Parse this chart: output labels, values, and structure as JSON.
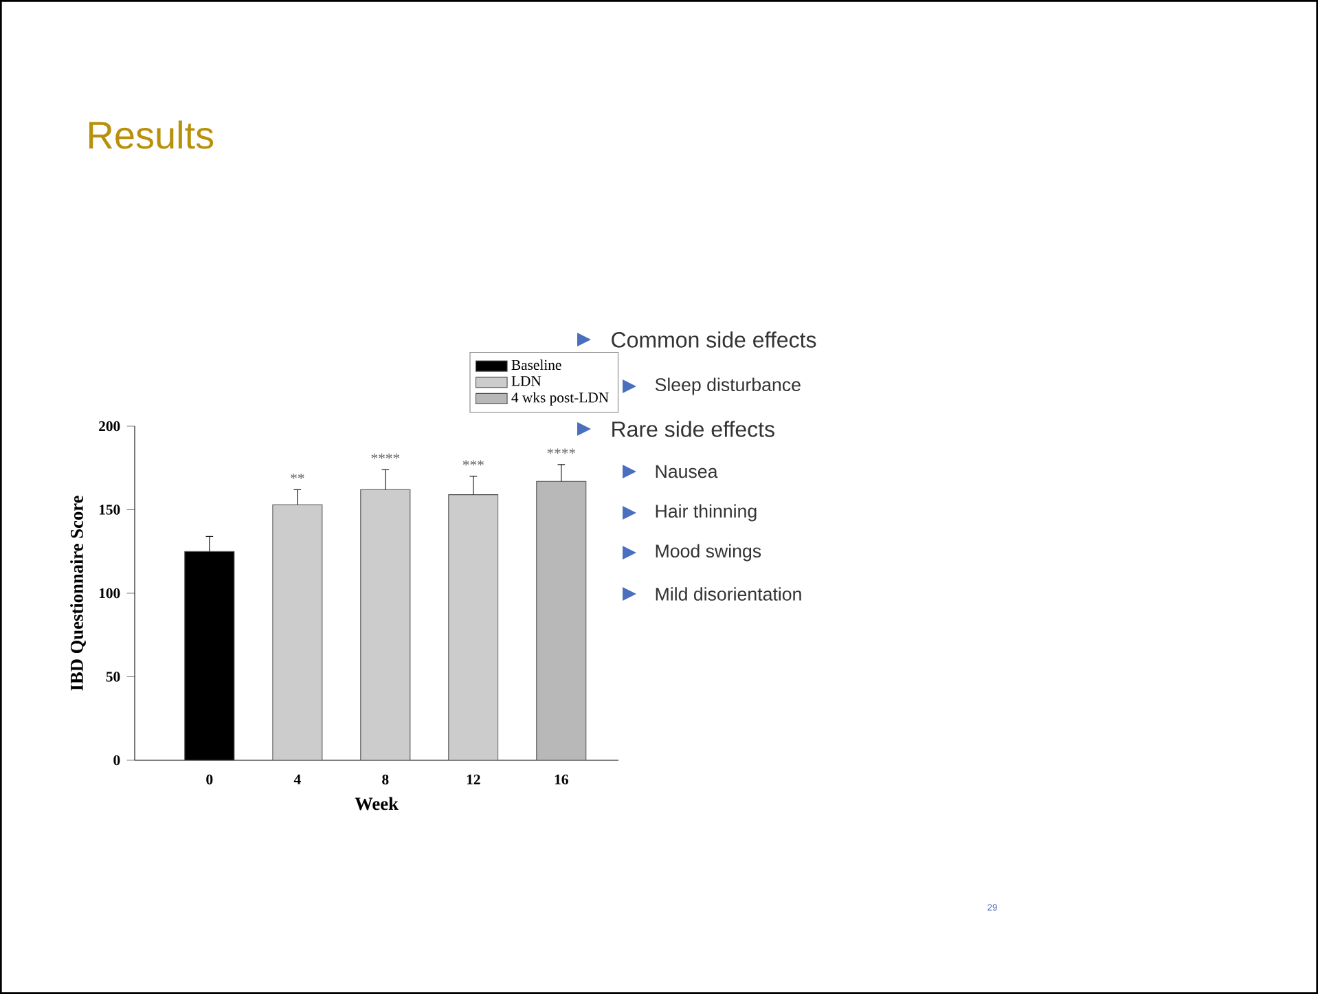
{
  "chart_data": {
    "type": "bar",
    "title": "Results",
    "xlabel": "Week",
    "ylabel": "IBD Questionnaire Score",
    "categories": [
      "0",
      "4",
      "8",
      "12",
      "16"
    ],
    "series": [
      {
        "name": "Baseline",
        "color": "#000000",
        "values": [
          125,
          null,
          null,
          null,
          null
        ],
        "errors": [
          9,
          null,
          null,
          null,
          null
        ]
      },
      {
        "name": "LDN",
        "color": "#cccccc",
        "values": [
          null,
          153,
          162,
          159,
          null
        ],
        "errors": [
          null,
          9,
          12,
          11,
          null
        ]
      },
      {
        "name": "4 wks post-LDN",
        "color": "#b8b8b8",
        "values": [
          null,
          null,
          null,
          null,
          167
        ],
        "errors": [
          null,
          null,
          null,
          null,
          10
        ]
      }
    ],
    "ylim": [
      0,
      200
    ],
    "yticks": [
      0,
      50,
      100,
      150,
      200
    ],
    "legend": "top right",
    "annotations": [
      "**",
      "****",
      "***",
      "****",
      "Common side effects",
      "Sleep disturbance",
      "Rare side effects",
      "Nausea",
      "Hair thinning",
      "Mood swings",
      "Mild disorientation",
      "29"
    ]
  }
}
